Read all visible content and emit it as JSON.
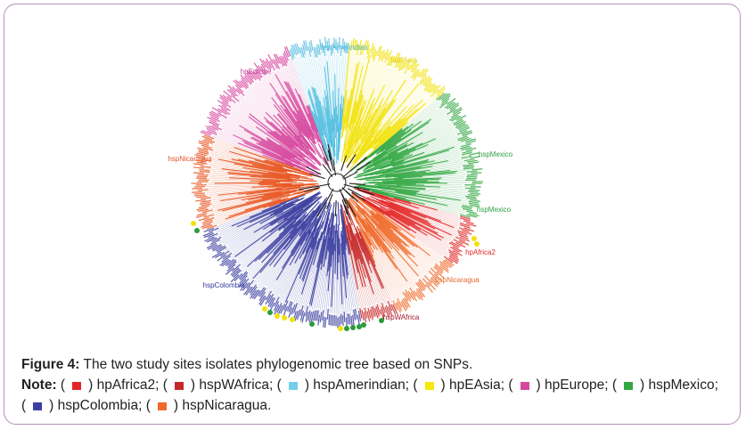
{
  "figure": {
    "labels": [
      {
        "text": "hspAmerindian",
        "color": "#4fb8d8"
      },
      {
        "text": "hpEAsia",
        "color": "#e2cf10"
      },
      {
        "text": "hpEurope",
        "color": "#c8449a"
      },
      {
        "text": "hspNicaragua",
        "color": "#e2542a"
      },
      {
        "text": "hspMexico",
        "color": "#2f9e41"
      },
      {
        "text": "hspMexico",
        "color": "#2f9e41"
      },
      {
        "text": "hpAfrica2",
        "color": "#e02626"
      },
      {
        "text": "hspNicaragua",
        "color": "#e8672c"
      },
      {
        "text": "hspColombia",
        "color": "#30369a"
      },
      {
        "text": "hspWAfrica",
        "color": "#a3142a"
      }
    ],
    "caption": {
      "label": "Figure 4:",
      "text": "The two study sites isolates phylogenomic tree based on SNPs."
    },
    "note": {
      "label": "Note:",
      "open": "(",
      "close": ")",
      "items": [
        {
          "color": "#e32626",
          "name": "hpAfrica2",
          "end": ";"
        },
        {
          "color": "#c62828",
          "name": "hspWAfrica",
          "end": ";"
        },
        {
          "color": "#74cfe8",
          "name": "hspAmerindian",
          "end": ";"
        },
        {
          "color": "#f5e80e",
          "name": "hpEAsia",
          "end": ";"
        },
        {
          "color": "#d6479e",
          "name": "hpEurope",
          "end": ";"
        },
        {
          "color": "#33a843",
          "name": "hspMexico",
          "end": ";"
        },
        {
          "color": "#3b3fa0",
          "name": "hspColombia",
          "end": ";"
        },
        {
          "color": "#f06a2a",
          "name": "hspNicaragua",
          "end": "."
        }
      ]
    }
  }
}
